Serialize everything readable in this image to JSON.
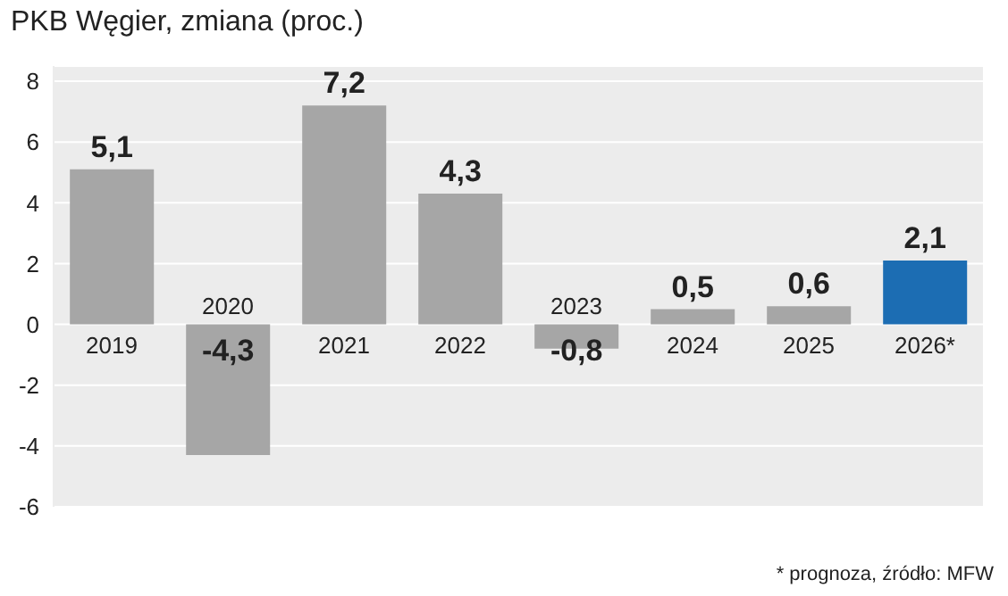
{
  "chart_data": {
    "type": "bar",
    "title": "PKB Węgier, zmiana (proc.)",
    "categories": [
      "2019",
      "2020",
      "2021",
      "2022",
      "2023",
      "2024",
      "2025",
      "2026*"
    ],
    "values": [
      5.1,
      -4.3,
      7.2,
      4.3,
      -0.8,
      0.5,
      0.6,
      2.1
    ],
    "colors": [
      "#a6a6a6",
      "#a6a6a6",
      "#a6a6a6",
      "#a6a6a6",
      "#a6a6a6",
      "#a6a6a6",
      "#a6a6a6",
      "#1c6db3"
    ],
    "value_labels": [
      "5,1",
      "-4,3",
      "7,2",
      "4,3",
      "-0,8",
      "0,5",
      "0,6",
      "2,1"
    ],
    "ylim": [
      -6,
      8.5
    ],
    "yticks": [
      -6,
      -4,
      -2,
      0,
      2,
      4,
      6,
      8
    ],
    "grid": "y",
    "annotations": [
      "* prognoza, źródło: MFW"
    ]
  }
}
